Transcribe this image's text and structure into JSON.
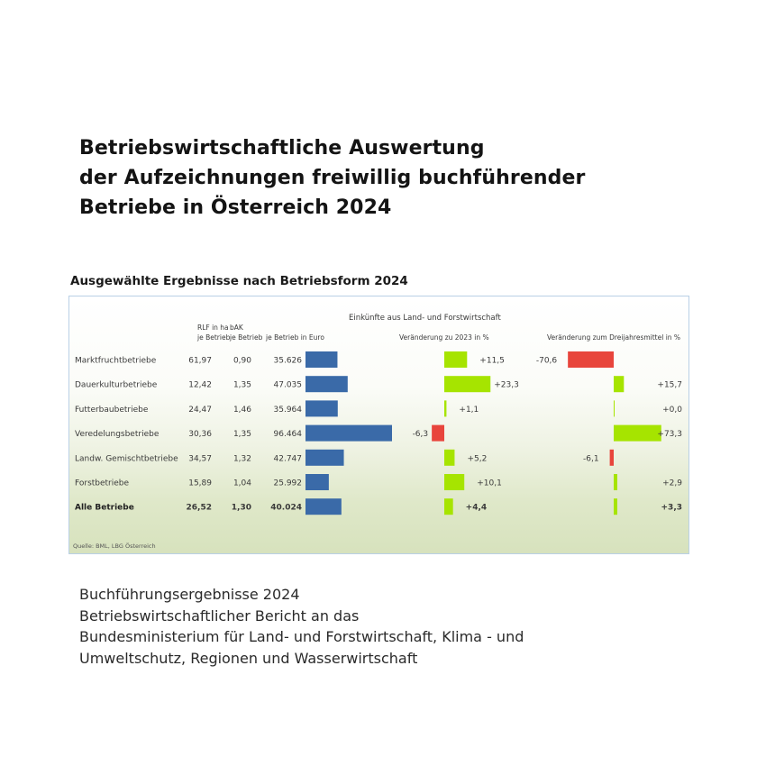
{
  "title_lines": [
    "Betriebswirtschaftliche Auswertung",
    "der Aufzeichnungen freiwillig buchführender",
    "Betriebe in Österreich 2024"
  ],
  "chart_heading": "Ausgewählte Ergebnisse nach Betriebsform 2024",
  "chart_data": {
    "type": "table",
    "title": "Ausgewählte Ergebnisse nach Betriebsform 2024",
    "column_headers": {
      "col1": [
        "RLF in ha",
        "je Betrieb"
      ],
      "col2": [
        "bAK",
        "je Betrieb"
      ],
      "col3": "je Betrieb in Euro",
      "group": "Einkünfte aus Land- und Forstwirtschaft",
      "bar1": "Veränderung zu 2023 in %",
      "bar2": "Veränderung zum Dreijahresmittel in %"
    },
    "rows": [
      {
        "label": "Marktfruchtbetriebe",
        "rlf": "61,97",
        "bak": "0,90",
        "euro": "35.626",
        "euro_value": 35626,
        "change1_label": "+11,5",
        "change1": 11.5,
        "change2_label": "-70,6",
        "change2": -70.6,
        "bold": false
      },
      {
        "label": "Dauerkulturbetriebe",
        "rlf": "12,42",
        "bak": "1,35",
        "euro": "47.035",
        "euro_value": 47035,
        "change1_label": "+23,3",
        "change1": 23.3,
        "change2_label": "+15,7",
        "change2": 15.7,
        "bold": false
      },
      {
        "label": "Futterbaubetriebe",
        "rlf": "24,47",
        "bak": "1,46",
        "euro": "35.964",
        "euro_value": 35964,
        "change1_label": "+1,1",
        "change1": 1.1,
        "change2_label": "+0,0",
        "change2": 0.0,
        "bold": false
      },
      {
        "label": "Veredelungsbetriebe",
        "rlf": "30,36",
        "bak": "1,35",
        "euro": "96.464",
        "euro_value": 96464,
        "change1_label": "-6,3",
        "change1": -6.3,
        "change2_label": "+73,3",
        "change2": 73.3,
        "bold": false
      },
      {
        "label": "Landw. Gemischtbetriebe",
        "rlf": "34,57",
        "bak": "1,32",
        "euro": "42.747",
        "euro_value": 42747,
        "change1_label": "+5,2",
        "change1": 5.2,
        "change2_label": "-6,1",
        "change2": -6.1,
        "bold": false
      },
      {
        "label": "Forstbetriebe",
        "rlf": "15,89",
        "bak": "1,04",
        "euro": "25.992",
        "euro_value": 25992,
        "change1_label": "+10,1",
        "change1": 10.1,
        "change2_label": "+2,9",
        "change2": 2.9,
        "bold": false
      },
      {
        "label": "Alle Betriebe",
        "rlf": "26,52",
        "bak": "1,30",
        "euro": "40.024",
        "euro_value": 40024,
        "change1_label": "+4,4",
        "change1": 4.4,
        "change2_label": "+3,3",
        "change2": 3.3,
        "bold": true
      }
    ],
    "source": "Quelle: BML, LBG Österreich",
    "colors": {
      "euro_bar": "#3a6aa8",
      "positive": "#a6e400",
      "negative": "#e8453c"
    }
  },
  "footer_lines": [
    "Buchführungsergebnisse 2024",
    "Betriebswirtschaftlicher Bericht an das",
    "Bundesministerium für Land- und Forstwirtschaft, Klima - und",
    "Umweltschutz, Regionen und Wasserwirtschaft"
  ]
}
